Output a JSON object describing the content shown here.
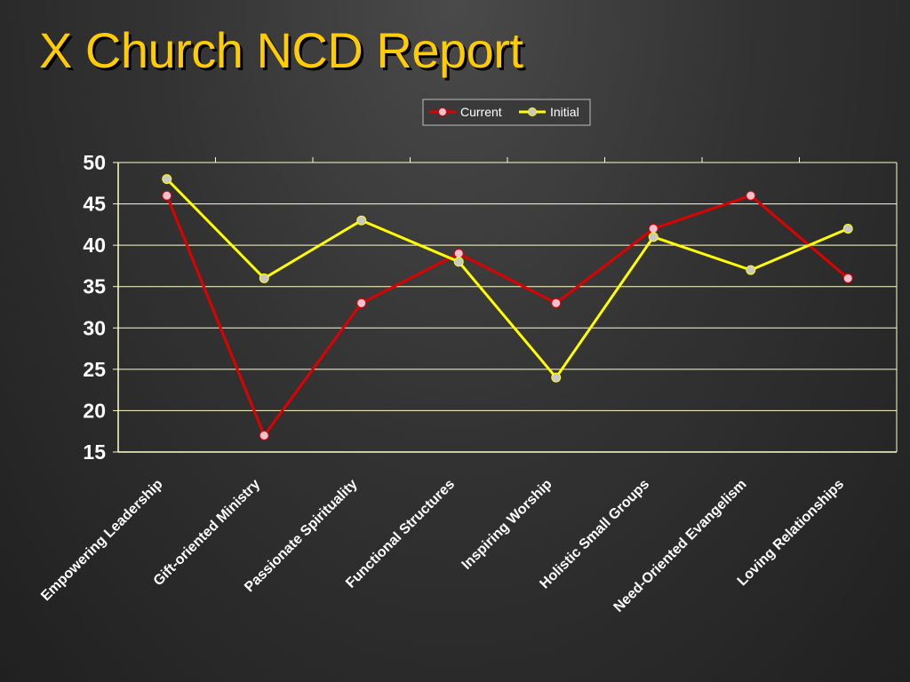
{
  "slide": {
    "title": "X Church NCD Report"
  },
  "colors": {
    "title": "#FFCC00",
    "current_line": "#E00000",
    "initial_line": "#FFFF00",
    "grid": "#FFFFCC",
    "current_marker": "#F2C2D0",
    "initial_marker": "#C8C8C8"
  },
  "chart_data": {
    "type": "line",
    "categories": [
      "Empowering Leadership",
      "Gift-oriented Ministry",
      "Passionate Spirituality",
      "Functional Structures",
      "Inspiring Worship",
      "Holistic Small Groups",
      "Need-Oriented Evangelism",
      "Loving Relationships"
    ],
    "series": [
      {
        "name": "Current",
        "values": [
          46,
          17,
          33,
          39,
          33,
          42,
          46,
          36
        ]
      },
      {
        "name": "Initial",
        "values": [
          48,
          36,
          43,
          38,
          24,
          41,
          37,
          42
        ]
      }
    ],
    "ylim": [
      15,
      50
    ],
    "yticks": [
      15,
      20,
      25,
      30,
      35,
      40,
      45,
      50
    ],
    "grid": true,
    "legend": "top-center"
  }
}
